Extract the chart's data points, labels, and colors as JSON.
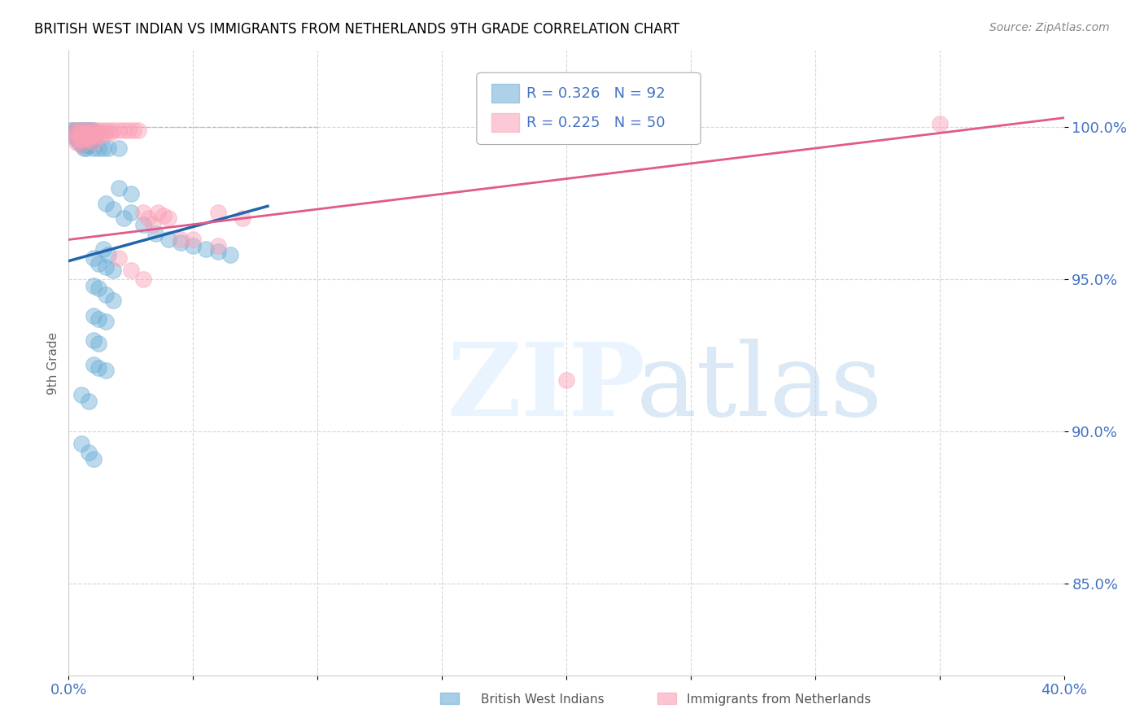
{
  "title": "BRITISH WEST INDIAN VS IMMIGRANTS FROM NETHERLANDS 9TH GRADE CORRELATION CHART",
  "source": "Source: ZipAtlas.com",
  "ylabel": "9th Grade",
  "x_min": 0.0,
  "x_max": 0.4,
  "y_min": 0.82,
  "y_max": 1.025,
  "x_ticks": [
    0.0,
    0.05,
    0.1,
    0.15,
    0.2,
    0.25,
    0.3,
    0.35,
    0.4
  ],
  "y_ticks": [
    0.85,
    0.9,
    0.95,
    1.0
  ],
  "y_tick_labels": [
    "85.0%",
    "90.0%",
    "95.0%",
    "100.0%"
  ],
  "color_blue": "#6baed6",
  "color_pink": "#fa9fb5",
  "color_blue_line": "#2166ac",
  "color_pink_line": "#e05a8a",
  "color_text_blue": "#4472c4",
  "legend_label_blue": "British West Indians",
  "legend_label_pink": "Immigrants from Netherlands",
  "blue_scatter": [
    [
      0.001,
      0.999
    ],
    [
      0.002,
      0.999
    ],
    [
      0.003,
      0.999
    ],
    [
      0.004,
      0.999
    ],
    [
      0.005,
      0.999
    ],
    [
      0.006,
      0.999
    ],
    [
      0.007,
      0.999
    ],
    [
      0.008,
      0.999
    ],
    [
      0.009,
      0.999
    ],
    [
      0.01,
      0.999
    ],
    [
      0.002,
      0.998
    ],
    [
      0.003,
      0.998
    ],
    [
      0.004,
      0.998
    ],
    [
      0.005,
      0.998
    ],
    [
      0.006,
      0.998
    ],
    [
      0.007,
      0.998
    ],
    [
      0.008,
      0.998
    ],
    [
      0.009,
      0.998
    ],
    [
      0.01,
      0.998
    ],
    [
      0.011,
      0.998
    ],
    [
      0.002,
      0.997
    ],
    [
      0.003,
      0.997
    ],
    [
      0.004,
      0.997
    ],
    [
      0.005,
      0.997
    ],
    [
      0.006,
      0.997
    ],
    [
      0.007,
      0.997
    ],
    [
      0.008,
      0.997
    ],
    [
      0.003,
      0.996
    ],
    [
      0.004,
      0.996
    ],
    [
      0.005,
      0.996
    ],
    [
      0.006,
      0.996
    ],
    [
      0.007,
      0.996
    ],
    [
      0.008,
      0.996
    ],
    [
      0.009,
      0.996
    ],
    [
      0.01,
      0.996
    ],
    [
      0.004,
      0.995
    ],
    [
      0.005,
      0.995
    ],
    [
      0.006,
      0.995
    ],
    [
      0.007,
      0.995
    ],
    [
      0.008,
      0.995
    ],
    [
      0.005,
      0.994
    ],
    [
      0.006,
      0.994
    ],
    [
      0.007,
      0.994
    ],
    [
      0.008,
      0.994
    ],
    [
      0.006,
      0.993
    ],
    [
      0.007,
      0.993
    ],
    [
      0.01,
      0.993
    ],
    [
      0.012,
      0.993
    ],
    [
      0.014,
      0.993
    ],
    [
      0.016,
      0.993
    ],
    [
      0.02,
      0.993
    ],
    [
      0.025,
      0.972
    ],
    [
      0.03,
      0.968
    ],
    [
      0.035,
      0.965
    ],
    [
      0.04,
      0.963
    ],
    [
      0.045,
      0.962
    ],
    [
      0.05,
      0.961
    ],
    [
      0.055,
      0.96
    ],
    [
      0.06,
      0.959
    ],
    [
      0.065,
      0.958
    ],
    [
      0.01,
      0.957
    ],
    [
      0.012,
      0.955
    ],
    [
      0.015,
      0.954
    ],
    [
      0.018,
      0.953
    ],
    [
      0.01,
      0.948
    ],
    [
      0.012,
      0.947
    ],
    [
      0.015,
      0.945
    ],
    [
      0.018,
      0.943
    ],
    [
      0.01,
      0.938
    ],
    [
      0.012,
      0.937
    ],
    [
      0.015,
      0.936
    ],
    [
      0.01,
      0.93
    ],
    [
      0.012,
      0.929
    ],
    [
      0.01,
      0.922
    ],
    [
      0.012,
      0.921
    ],
    [
      0.015,
      0.92
    ],
    [
      0.005,
      0.896
    ],
    [
      0.008,
      0.893
    ],
    [
      0.01,
      0.891
    ],
    [
      0.015,
      0.975
    ],
    [
      0.018,
      0.973
    ],
    [
      0.022,
      0.97
    ],
    [
      0.014,
      0.96
    ],
    [
      0.016,
      0.958
    ],
    [
      0.005,
      0.912
    ],
    [
      0.008,
      0.91
    ],
    [
      0.02,
      0.98
    ],
    [
      0.025,
      0.978
    ]
  ],
  "pink_scatter": [
    [
      0.002,
      0.999
    ],
    [
      0.004,
      0.999
    ],
    [
      0.006,
      0.999
    ],
    [
      0.008,
      0.999
    ],
    [
      0.01,
      0.999
    ],
    [
      0.012,
      0.999
    ],
    [
      0.014,
      0.999
    ],
    [
      0.016,
      0.999
    ],
    [
      0.018,
      0.999
    ],
    [
      0.02,
      0.999
    ],
    [
      0.022,
      0.999
    ],
    [
      0.024,
      0.999
    ],
    [
      0.026,
      0.999
    ],
    [
      0.028,
      0.999
    ],
    [
      0.003,
      0.998
    ],
    [
      0.005,
      0.998
    ],
    [
      0.007,
      0.998
    ],
    [
      0.009,
      0.998
    ],
    [
      0.011,
      0.998
    ],
    [
      0.013,
      0.998
    ],
    [
      0.015,
      0.998
    ],
    [
      0.017,
      0.998
    ],
    [
      0.003,
      0.997
    ],
    [
      0.005,
      0.997
    ],
    [
      0.007,
      0.997
    ],
    [
      0.009,
      0.997
    ],
    [
      0.011,
      0.997
    ],
    [
      0.013,
      0.997
    ],
    [
      0.003,
      0.996
    ],
    [
      0.005,
      0.996
    ],
    [
      0.007,
      0.996
    ],
    [
      0.03,
      0.972
    ],
    [
      0.032,
      0.97
    ],
    [
      0.034,
      0.968
    ],
    [
      0.036,
      0.972
    ],
    [
      0.038,
      0.971
    ],
    [
      0.04,
      0.97
    ],
    [
      0.02,
      0.957
    ],
    [
      0.025,
      0.953
    ],
    [
      0.03,
      0.95
    ],
    [
      0.045,
      0.963
    ],
    [
      0.05,
      0.963
    ],
    [
      0.06,
      0.961
    ],
    [
      0.2,
      0.917
    ],
    [
      0.35,
      1.001
    ],
    [
      0.06,
      0.972
    ],
    [
      0.07,
      0.97
    ],
    [
      0.003,
      0.995
    ],
    [
      0.005,
      0.994
    ],
    [
      0.008,
      0.996
    ],
    [
      0.01,
      0.995
    ]
  ],
  "blue_line_x": [
    0.0,
    0.08
  ],
  "blue_line_y": [
    0.956,
    0.974
  ],
  "pink_line_x": [
    0.0,
    0.4
  ],
  "pink_line_y": [
    0.963,
    1.003
  ],
  "dashed_line_x": [
    0.0,
    0.1
  ],
  "dashed_line_y": [
    1.0,
    1.0
  ]
}
